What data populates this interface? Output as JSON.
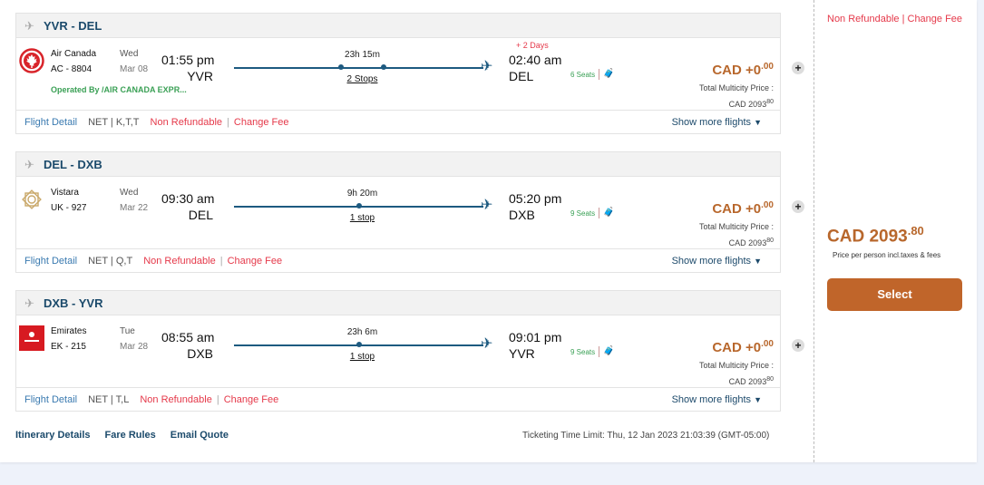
{
  "segments": [
    {
      "route": "YVR - DEL",
      "airline": "Air Canada",
      "code": "AC - 8804",
      "day": "Wed",
      "date": "Mar 08",
      "dep_time": "01:55 pm",
      "dep_airport": "YVR",
      "duration": "23h 15m",
      "stops": "2 Stops",
      "stop_count": 2,
      "day_offset": "+ 2 Days",
      "arr_time": "02:40 am",
      "arr_airport": "DEL",
      "seats": "6 Seats",
      "price_main": "CAD +0",
      "price_dec": ".00",
      "total_label": "Total Multicity Price :",
      "total_main": "CAD 2093",
      "total_dec": "80",
      "operated_by": "Operated By /AIR CANADA EXPR...",
      "flight_detail": "Flight Detail",
      "fare": "NET | K,T,T",
      "non_refundable": "Non Refundable",
      "change_fee": "Change Fee",
      "show_more": "Show more flights",
      "logo": "air-canada-logo"
    },
    {
      "route": "DEL - DXB",
      "airline": "Vistara",
      "code": "UK - 927",
      "day": "Wed",
      "date": "Mar 22",
      "dep_time": "09:30 am",
      "dep_airport": "DEL",
      "duration": "9h 20m",
      "stops": "1 stop",
      "stop_count": 1,
      "day_offset": "",
      "arr_time": "05:20 pm",
      "arr_airport": "DXB",
      "seats": "9 Seats",
      "price_main": "CAD +0",
      "price_dec": ".00",
      "total_label": "Total Multicity Price :",
      "total_main": "CAD 2093",
      "total_dec": "80",
      "operated_by": "",
      "flight_detail": "Flight Detail",
      "fare": "NET | Q,T",
      "non_refundable": "Non Refundable",
      "change_fee": "Change Fee",
      "show_more": "Show more flights",
      "logo": "vistara-logo"
    },
    {
      "route": "DXB - YVR",
      "airline": "Emirates",
      "code": "EK - 215",
      "day": "Tue",
      "date": "Mar 28",
      "dep_time": "08:55 am",
      "dep_airport": "DXB",
      "duration": "23h 6m",
      "stops": "1 stop",
      "stop_count": 1,
      "day_offset": "",
      "arr_time": "09:01 pm",
      "arr_airport": "YVR",
      "seats": "9 Seats",
      "price_main": "CAD +0",
      "price_dec": ".00",
      "total_label": "Total Multicity Price :",
      "total_main": "CAD 2093",
      "total_dec": "80",
      "operated_by": "",
      "flight_detail": "Flight Detail",
      "fare": "NET | T,L",
      "non_refundable": "Non Refundable",
      "change_fee": "Change Fee",
      "show_more": "Show more flights",
      "logo": "emirates-logo"
    }
  ],
  "footer": {
    "itinerary": "Itinerary Details",
    "fare_rules": "Fare Rules",
    "email_quote": "Email Quote",
    "ticketing": "Ticketing Time Limit: Thu, 12 Jan 2023 21:03:39 (GMT-05:00)"
  },
  "summary": {
    "non_refundable": "Non Refundable",
    "change_fee": "Change Fee",
    "price_main": "CAD 2093",
    "price_dec": ".80",
    "note": "Price per person incl.taxes & fees",
    "select": "Select"
  },
  "colors": {
    "accent": "#c0652a",
    "price": "#b8672c",
    "route": "#1b4a6b",
    "alert": "#e5394a",
    "seats": "#3aa055"
  }
}
